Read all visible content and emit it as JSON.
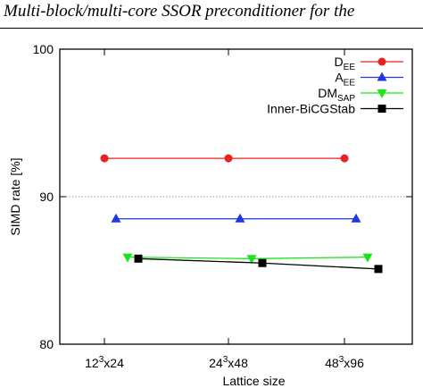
{
  "header": {
    "title": "Multi-block/multi-core SSOR preconditioner for the"
  },
  "chart_data": {
    "type": "line",
    "categories": [
      "12³x24",
      "24³x48",
      "48³x96"
    ],
    "category_tick_labels": [
      {
        "base": "12",
        "sup": "3",
        "rest": "x24"
      },
      {
        "base": "24",
        "sup": "3",
        "rest": "x48"
      },
      {
        "base": "48",
        "sup": "3",
        "rest": "x96"
      }
    ],
    "xlabel": "Lattice size",
    "ylabel": "SIMD rate [%]",
    "ylim": [
      80,
      100
    ],
    "yticks": [
      80,
      90,
      100
    ],
    "grid": "horizontal dashed line at 90",
    "legend_position": "top-right",
    "series": [
      {
        "name": "D",
        "sub": "EE",
        "color": "#e8221e",
        "marker": "circle",
        "values": [
          92.6,
          92.6,
          92.6
        ]
      },
      {
        "name": "A",
        "sub": "EE",
        "color": "#1f35e6",
        "marker": "triangle-up",
        "values": [
          88.5,
          88.5,
          88.5
        ]
      },
      {
        "name": "DM",
        "sub": "SAP",
        "color": "#19e619",
        "marker": "triangle-down",
        "values": [
          85.9,
          85.8,
          85.9
        ]
      },
      {
        "name": "Inner-BiCGStab",
        "sub": "",
        "color": "#000000",
        "marker": "square",
        "values": [
          85.8,
          85.5,
          85.1
        ]
      }
    ]
  }
}
